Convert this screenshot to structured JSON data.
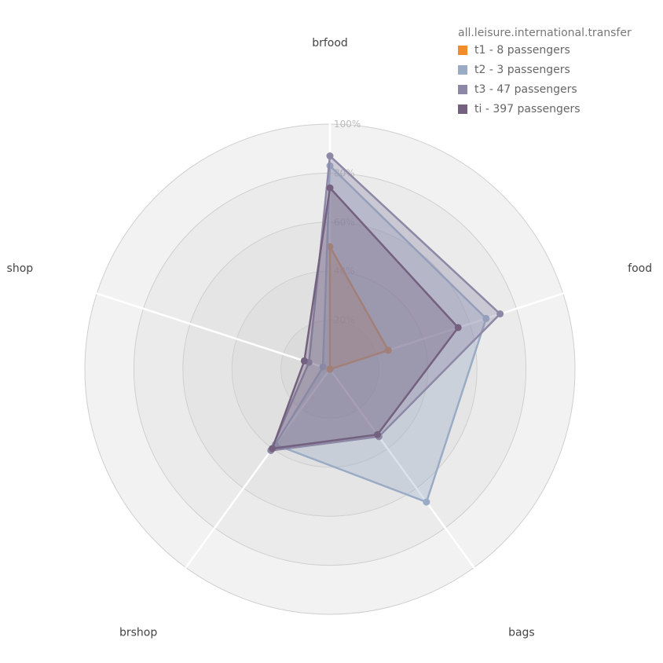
{
  "chart_data": {
    "type": "radar",
    "title": "",
    "axes": [
      "brfood",
      "food",
      "bags",
      "brshop",
      "shop"
    ],
    "ticks": [
      "20%",
      "40%",
      "60%",
      "80%",
      "100%"
    ],
    "range": [
      0,
      100
    ],
    "legend": {
      "title": "all.leisure.international.transfer",
      "position": "top-right"
    },
    "series": [
      {
        "name": "t1 - 8 passengers",
        "color": "#f28c28",
        "values": [
          50,
          25,
          0,
          0,
          0
        ]
      },
      {
        "name": "t2 - 3 passengers",
        "color": "#9aabc5",
        "values": [
          83,
          67,
          67,
          38,
          3
        ]
      },
      {
        "name": "t3 - 47 passengers",
        "color": "#8d88a6",
        "values": [
          87,
          73,
          34,
          41,
          9
        ]
      },
      {
        "name": "ti - 397 passengers",
        "color": "#74617f",
        "values": [
          74,
          55,
          33,
          40,
          11
        ]
      }
    ]
  }
}
